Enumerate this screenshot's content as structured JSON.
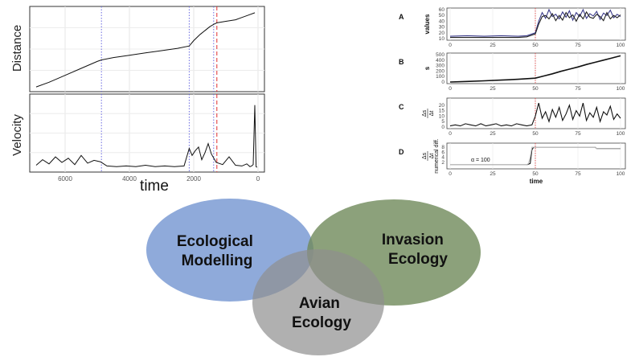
{
  "chart_data": [
    {
      "type": "line",
      "panel": "distance",
      "ylabel": "Distance",
      "xlabel": "time",
      "x_reversed": true,
      "xlim": [
        7000,
        0
      ],
      "xticks": [
        6000,
        4000,
        2000,
        0
      ],
      "grid": true,
      "vlines": [
        {
          "x": 4870,
          "color": "#6a6ae0",
          "style": "dotted"
        },
        {
          "x": 2140,
          "color": "#6a6ae0",
          "style": "dotted"
        },
        {
          "x": 1380,
          "color": "#6a6ae0",
          "style": "dotted"
        },
        {
          "x": 1280,
          "color": "#e03030",
          "style": "dashed"
        }
      ],
      "series": [
        {
          "values_x": [
            6900,
            6500,
            6000,
            5500,
            5000,
            4870,
            4500,
            4000,
            3500,
            3000,
            2500,
            2140,
            2000,
            1800,
            1500,
            1380,
            1280,
            1000,
            700,
            500,
            300,
            100
          ],
          "values_y": [
            2,
            8,
            17,
            26,
            35,
            37,
            40,
            43,
            46,
            49,
            52,
            55,
            62,
            70,
            80,
            83,
            85,
            87,
            89,
            92,
            95,
            98
          ]
        }
      ]
    },
    {
      "type": "line",
      "panel": "velocity",
      "ylabel": "Velocity",
      "xlabel": "time",
      "x_reversed": true,
      "xlim": [
        7000,
        0
      ],
      "xticks": [
        6000,
        4000,
        2000,
        0
      ],
      "tick_labels": [
        "6000",
        "4000",
        "2000",
        "0"
      ],
      "grid": true,
      "vlines": [
        {
          "x": 4870,
          "color": "#6a6ae0",
          "style": "dotted"
        },
        {
          "x": 2140,
          "color": "#6a6ae0",
          "style": "dotted"
        },
        {
          "x": 1380,
          "color": "#6a6ae0",
          "style": "dotted"
        },
        {
          "x": 1280,
          "color": "#e03030",
          "style": "dashed"
        }
      ],
      "series": [
        {
          "values_x": [
            6900,
            6700,
            6500,
            6300,
            6100,
            5900,
            5700,
            5500,
            5300,
            5100,
            4900,
            4700,
            4400,
            4100,
            3800,
            3500,
            3200,
            2900,
            2600,
            2300,
            2140,
            2050,
            1950,
            1850,
            1750,
            1650,
            1550,
            1450,
            1300,
            1100,
            900,
            700,
            500,
            350,
            250,
            200,
            150,
            100,
            60,
            30
          ],
          "values_y": [
            4,
            12,
            6,
            16,
            8,
            14,
            5,
            18,
            7,
            11,
            9,
            3,
            2,
            3,
            2,
            4,
            2,
            3,
            2,
            3,
            28,
            18,
            25,
            30,
            12,
            22,
            35,
            20,
            8,
            5,
            16,
            4,
            3,
            6,
            2,
            3,
            5,
            90,
            2,
            1
          ]
        }
      ]
    },
    {
      "type": "line",
      "panel": "A",
      "label": "A",
      "ylabel": "values",
      "xlim": [
        0,
        100
      ],
      "xticks": [
        0,
        25,
        50,
        75,
        100
      ],
      "ylim": [
        10,
        60
      ],
      "yticks": [
        10,
        20,
        30,
        40,
        50,
        60
      ],
      "vline_x": 50,
      "series": [
        {
          "color": "#3a3a8a",
          "x": [
            0,
            10,
            20,
            30,
            40,
            45,
            50,
            52,
            54,
            56,
            58,
            60,
            62,
            64,
            66,
            68,
            70,
            72,
            74,
            76,
            78,
            80,
            82,
            84,
            86,
            88,
            90,
            92,
            94,
            96,
            98,
            100
          ],
          "y": [
            14,
            15,
            14,
            15,
            14,
            15,
            20,
            40,
            55,
            45,
            60,
            48,
            52,
            44,
            56,
            47,
            58,
            42,
            55,
            48,
            60,
            45,
            53,
            49,
            57,
            43,
            54,
            50,
            59,
            46,
            52,
            48
          ]
        },
        {
          "color": "#222222",
          "x": [
            0,
            10,
            20,
            30,
            40,
            45,
            50,
            52,
            54,
            56,
            58,
            60,
            62,
            64,
            66,
            68,
            70,
            72,
            74,
            76,
            78,
            80,
            82,
            84,
            86,
            88,
            90,
            92,
            94,
            96,
            98,
            100
          ],
          "y": [
            12,
            12,
            12,
            12,
            12,
            13,
            18,
            35,
            48,
            50,
            44,
            53,
            41,
            50,
            42,
            55,
            46,
            51,
            40,
            52,
            44,
            56,
            47,
            45,
            52,
            48,
            41,
            55,
            44,
            50,
            46,
            51
          ]
        }
      ]
    },
    {
      "type": "line",
      "panel": "B",
      "label": "B",
      "ylabel": "s",
      "xlim": [
        0,
        100
      ],
      "xticks": [
        0,
        25,
        50,
        75,
        100
      ],
      "ylim": [
        0,
        500
      ],
      "yticks": [
        0,
        100,
        200,
        300,
        400,
        500
      ],
      "vline_x": 50,
      "series": [
        {
          "color": "#111111",
          "x": [
            0,
            10,
            20,
            30,
            40,
            50,
            55,
            60,
            65,
            70,
            75,
            80,
            85,
            90,
            95,
            100
          ],
          "y": [
            0,
            10,
            22,
            35,
            50,
            70,
            110,
            150,
            195,
            235,
            275,
            320,
            360,
            400,
            440,
            480
          ]
        }
      ]
    },
    {
      "type": "line",
      "panel": "C",
      "label": "C",
      "ylabel_fraction": [
        "Δs",
        "Δt"
      ],
      "xlim": [
        0,
        100
      ],
      "xticks": [
        0,
        25,
        50,
        75,
        100
      ],
      "ylim": [
        0,
        25
      ],
      "yticks": [
        0,
        5,
        10,
        15,
        20
      ],
      "vline_x": 50,
      "series": [
        {
          "color": "#111111",
          "x": [
            0,
            3,
            6,
            9,
            12,
            15,
            18,
            21,
            24,
            27,
            30,
            33,
            36,
            39,
            42,
            45,
            48,
            50,
            52,
            54,
            56,
            58,
            60,
            62,
            64,
            66,
            68,
            70,
            72,
            74,
            76,
            78,
            80,
            82,
            84,
            86,
            88,
            90,
            92,
            94,
            96,
            98,
            100
          ],
          "y": [
            1,
            2,
            1,
            3,
            2,
            1,
            3,
            1,
            2,
            3,
            1,
            2,
            1,
            3,
            2,
            1,
            2,
            10,
            22,
            8,
            14,
            5,
            16,
            9,
            18,
            6,
            12,
            20,
            7,
            15,
            10,
            22,
            6,
            13,
            9,
            18,
            5,
            14,
            11,
            19,
            7,
            12,
            8
          ]
        }
      ]
    },
    {
      "type": "line",
      "panel": "D",
      "label": "D",
      "ylabel_fraction": [
        "Δs",
        "Δt"
      ],
      "ylabel_extra": "numerical diff.",
      "xlabel": "time",
      "annotation": "α = 100",
      "xlim": [
        0,
        100
      ],
      "xticks": [
        0,
        25,
        50,
        75,
        100
      ],
      "ylim": [
        0,
        9
      ],
      "yticks": [
        2,
        4,
        6,
        8
      ],
      "vline_x": 50,
      "series": [
        {
          "color": "#111111",
          "x": [
            0,
            45,
            47,
            48,
            49,
            85,
            86,
            100
          ],
          "y": [
            1,
            1,
            1.5,
            7,
            8,
            8,
            7.5,
            7.5
          ]
        },
        {
          "color": "#bbbbbb",
          "x": [
            0,
            45,
            46,
            47,
            48,
            85,
            86,
            100
          ],
          "y": [
            1,
            1,
            1.5,
            4,
            8,
            8,
            7.5,
            7.5
          ]
        }
      ]
    }
  ],
  "venn": {
    "circles": [
      {
        "lines": [
          "Ecological",
          "Modelling"
        ],
        "color": "#7b9bd4"
      },
      {
        "lines": [
          "Invasion",
          "Ecology"
        ],
        "color": "#6f8a5a"
      },
      {
        "lines": [
          "Avian",
          "Ecology"
        ],
        "color": "#8f8f8f"
      }
    ]
  }
}
